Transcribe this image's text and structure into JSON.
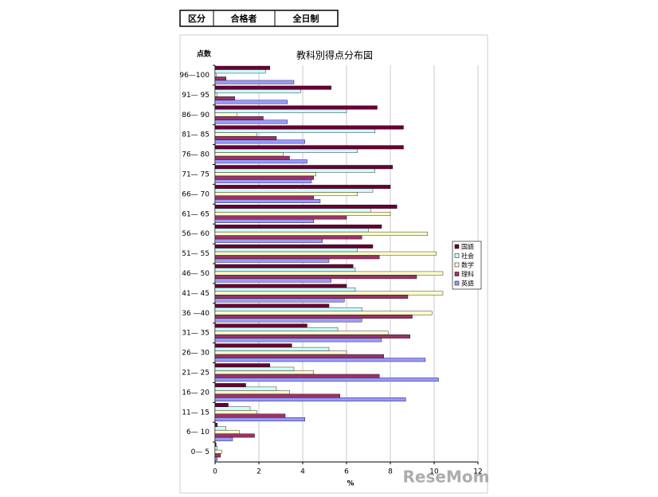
{
  "header": {
    "cells": [
      "区分",
      "合格者",
      "全日制"
    ]
  },
  "chart_data": {
    "type": "hbar",
    "title": "教科別得点分布図",
    "y_label": "点数",
    "x_label": "%",
    "categories": [
      "96—100",
      "91— 95",
      "86— 90",
      "81— 85",
      "76— 80",
      "71— 75",
      "66— 70",
      "61— 65",
      "56— 60",
      "51— 55",
      "46— 50",
      "41— 45",
      "36 —40",
      "31— 35",
      "26— 30",
      "21— 25",
      "16— 20",
      "11— 15",
      "6— 10",
      "0— 5"
    ],
    "series": [
      {
        "name": "国語",
        "color": "#660033",
        "values": [
          2.5,
          5.3,
          7.4,
          8.6,
          8.6,
          8.1,
          8.0,
          8.3,
          7.6,
          7.2,
          6.3,
          6.0,
          5.2,
          4.2,
          3.5,
          2.5,
          1.4,
          0.6,
          0.1,
          0.05
        ]
      },
      {
        "name": "社会",
        "color": "#ccffff",
        "values": [
          2.3,
          3.9,
          6.0,
          7.3,
          6.5,
          7.3,
          7.2,
          7.1,
          7.0,
          6.5,
          6.4,
          6.4,
          6.7,
          5.6,
          5.2,
          3.6,
          2.8,
          1.6,
          0.5,
          0.1
        ]
      },
      {
        "name": "数学",
        "color": "#ffffcc",
        "values": [
          0.05,
          0.1,
          1.0,
          1.9,
          3.1,
          4.6,
          6.5,
          8.0,
          9.7,
          10.1,
          10.4,
          10.4,
          9.9,
          7.9,
          6.0,
          4.5,
          3.4,
          1.9,
          1.1,
          0.3
        ]
      },
      {
        "name": "理科",
        "color": "#993366",
        "values": [
          0.5,
          0.9,
          2.2,
          2.8,
          3.4,
          4.5,
          4.5,
          6.0,
          6.7,
          7.5,
          9.2,
          8.8,
          9.0,
          8.9,
          7.7,
          7.5,
          5.7,
          3.2,
          1.8,
          0.25
        ]
      },
      {
        "name": "英語",
        "color": "#9999ff",
        "values": [
          3.6,
          3.3,
          3.3,
          4.1,
          4.2,
          4.4,
          4.8,
          4.5,
          4.9,
          5.2,
          5.3,
          5.9,
          6.7,
          7.6,
          9.6,
          10.2,
          8.7,
          4.1,
          0.8,
          0.1
        ]
      }
    ],
    "xlim": [
      0,
      12
    ],
    "xticks": [
      0,
      2,
      4,
      6,
      8,
      10,
      12
    ],
    "grid": true,
    "legend": "right"
  },
  "watermark": "ReseMom"
}
